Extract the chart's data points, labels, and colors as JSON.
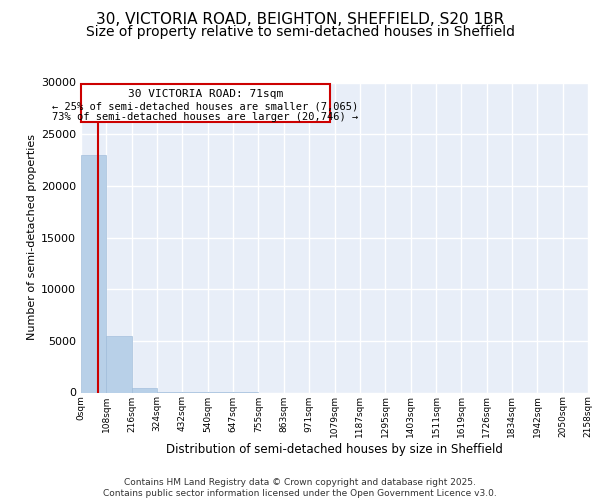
{
  "title_line1": "30, VICTORIA ROAD, BEIGHTON, SHEFFIELD, S20 1BR",
  "title_line2": "Size of property relative to semi-detached houses in Sheffield",
  "xlabel": "Distribution of semi-detached houses by size in Sheffield",
  "ylabel": "Number of semi-detached properties",
  "bar_values": [
    23000,
    5500,
    400,
    30,
    5,
    2,
    1,
    0,
    0,
    0,
    0,
    0,
    0,
    0,
    0,
    0,
    0,
    0,
    0,
    0
  ],
  "bar_edges": [
    0,
    108,
    216,
    324,
    432,
    540,
    647,
    755,
    863,
    971,
    1079,
    1187,
    1295,
    1403,
    1511,
    1619,
    1726,
    1834,
    1942,
    2050,
    2158
  ],
  "bin_labels": [
    "0sqm",
    "108sqm",
    "216sqm",
    "324sqm",
    "432sqm",
    "540sqm",
    "647sqm",
    "755sqm",
    "863sqm",
    "971sqm",
    "1079sqm",
    "1187sqm",
    "1295sqm",
    "1403sqm",
    "1511sqm",
    "1619sqm",
    "1726sqm",
    "1834sqm",
    "1942sqm",
    "2050sqm",
    "2158sqm"
  ],
  "bar_color": "#b8d0e8",
  "bar_edgecolor": "#b8d0e8",
  "property_size": 71,
  "property_label": "30 VICTORIA ROAD: 71sqm",
  "ann_line2": "← 25% of semi-detached houses are smaller (7,065)",
  "ann_line3": "73% of semi-detached houses are larger (20,746) →",
  "annotation_box_color": "#cc0000",
  "vline_color": "#cc0000",
  "ylim": [
    0,
    30000
  ],
  "yticks": [
    0,
    5000,
    10000,
    15000,
    20000,
    25000,
    30000
  ],
  "background_color": "#e8eef8",
  "grid_color": "#ffffff",
  "footer_text": "Contains HM Land Registry data © Crown copyright and database right 2025.\nContains public sector information licensed under the Open Government Licence v3.0.",
  "title_fontsize": 11,
  "subtitle_fontsize": 10
}
